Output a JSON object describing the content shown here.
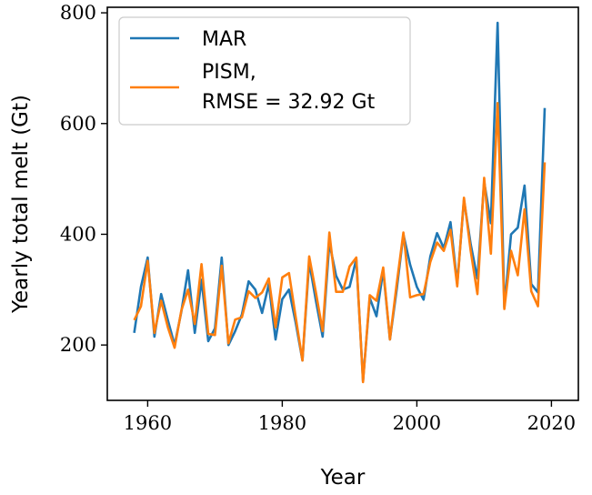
{
  "chart_data": {
    "type": "line",
    "title": "",
    "xlabel": "Year",
    "ylabel": "Yearly total melt (Gt)",
    "xlim": [
      1954,
      2024
    ],
    "ylim": [
      100,
      810
    ],
    "xticks": [
      1960,
      1980,
      2000,
      2020
    ],
    "yticks": [
      200,
      400,
      600,
      800
    ],
    "grid": false,
    "legend": {
      "placement": "upper-left"
    },
    "x": [
      1958,
      1959,
      1960,
      1961,
      1962,
      1963,
      1964,
      1965,
      1966,
      1967,
      1968,
      1969,
      1970,
      1971,
      1972,
      1973,
      1974,
      1975,
      1976,
      1977,
      1978,
      1979,
      1980,
      1981,
      1982,
      1983,
      1984,
      1985,
      1986,
      1987,
      1988,
      1989,
      1990,
      1991,
      1992,
      1993,
      1994,
      1995,
      1996,
      1997,
      1998,
      1999,
      2000,
      2001,
      2002,
      2003,
      2004,
      2005,
      2006,
      2007,
      2008,
      2009,
      2010,
      2011,
      2012,
      2013,
      2014,
      2015,
      2016,
      2017,
      2018,
      2019
    ],
    "series": [
      {
        "name": "MAR",
        "color": "#1f77b4",
        "values": [
          222,
          305,
          358,
          215,
          292,
          245,
          200,
          260,
          335,
          222,
          318,
          207,
          230,
          358,
          200,
          225,
          255,
          315,
          300,
          258,
          310,
          210,
          283,
          300,
          240,
          172,
          350,
          280,
          215,
          385,
          325,
          300,
          305,
          355,
          135,
          285,
          252,
          335,
          210,
          300,
          400,
          345,
          305,
          282,
          360,
          402,
          375,
          422,
          310,
          462,
          382,
          320,
          495,
          420,
          782,
          268,
          400,
          412,
          488,
          310,
          295,
          628
        ]
      },
      {
        "name": "PISM,",
        "name_line2": "RMSE = 32.92 Gt",
        "color": "#ff7f0e",
        "values": [
          245,
          270,
          352,
          222,
          280,
          232,
          195,
          262,
          300,
          238,
          346,
          220,
          218,
          343,
          203,
          246,
          250,
          297,
          285,
          295,
          320,
          232,
          322,
          330,
          250,
          172,
          360,
          295,
          225,
          403,
          296,
          296,
          342,
          358,
          133,
          290,
          280,
          340,
          210,
          310,
          403,
          286,
          290,
          292,
          350,
          385,
          370,
          408,
          306,
          466,
          370,
          292,
          502,
          365,
          637,
          265,
          370,
          326,
          445,
          297,
          270,
          530
        ]
      }
    ]
  }
}
